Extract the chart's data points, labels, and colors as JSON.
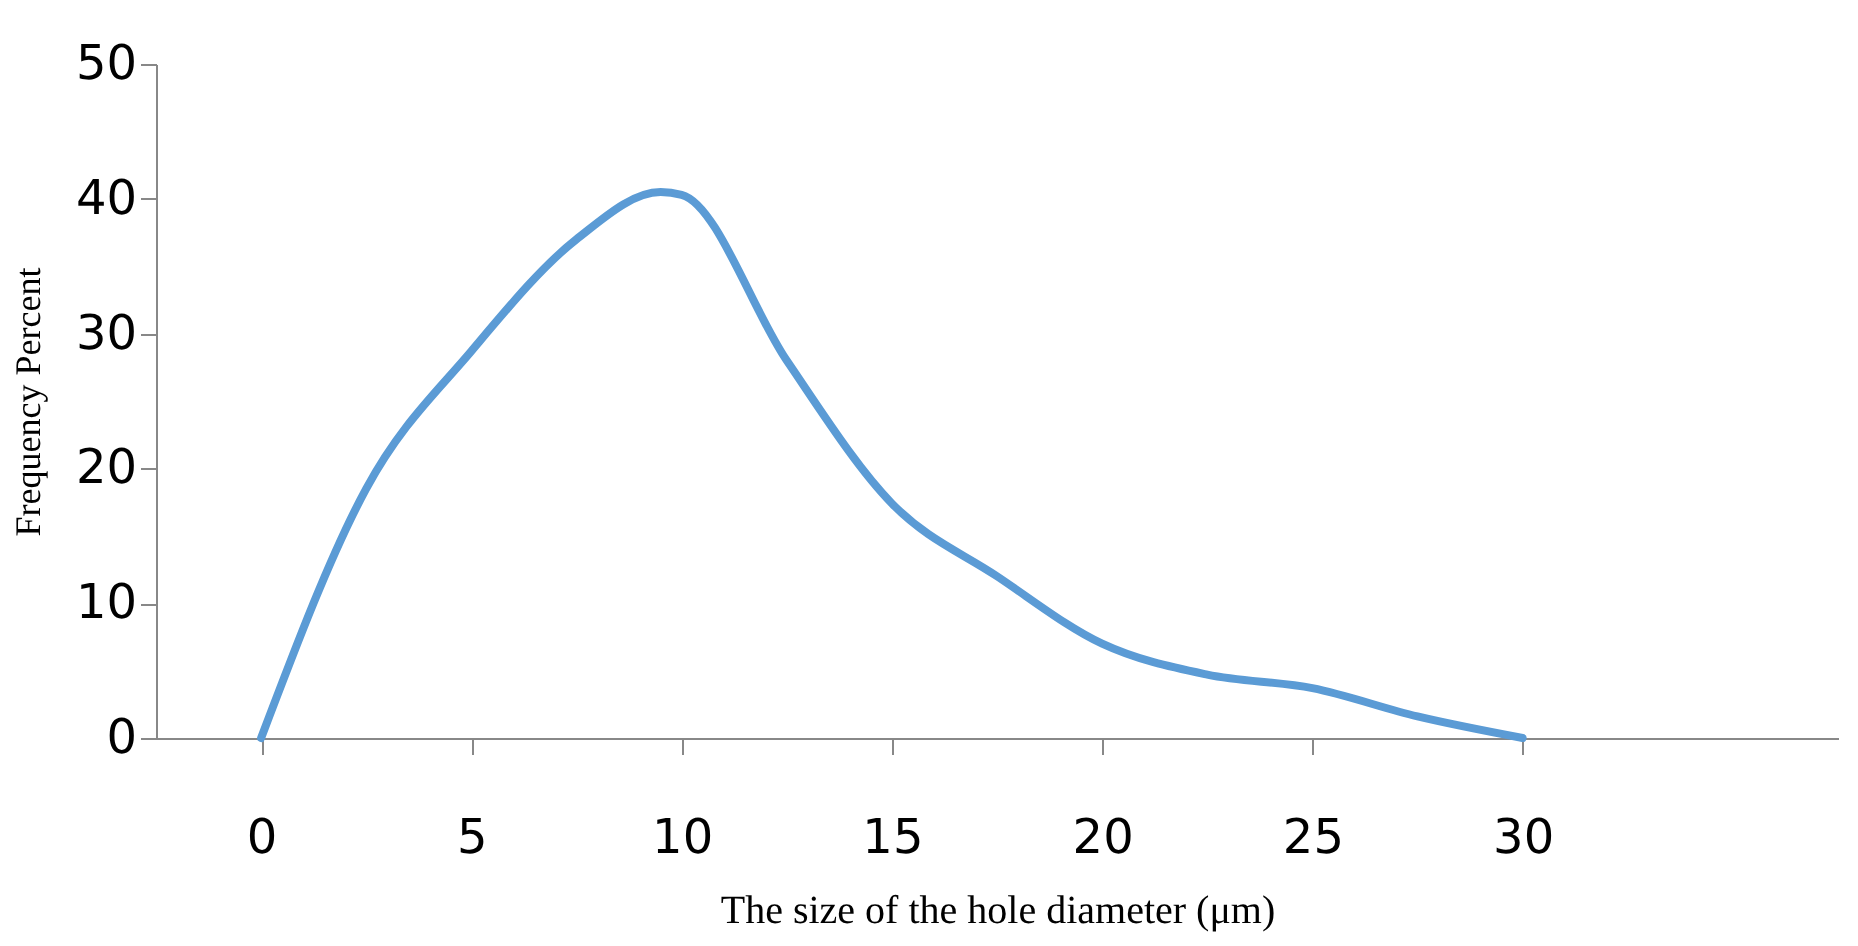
{
  "chart_data": {
    "type": "line",
    "xlabel": "The size of the hole diameter (μm)",
    "ylabel": "Frequency  Percent",
    "x": [
      0,
      2.5,
      5,
      7.5,
      9.5,
      10,
      12.5,
      15,
      17.5,
      20,
      22.5,
      25,
      27.5,
      30
    ],
    "series": [
      {
        "color": "#5b9bd5",
        "values": [
          0,
          18.5,
          28.7,
          37,
          40.5,
          40.3,
          28,
          17.4,
          12,
          7,
          4.7,
          3.7,
          1.6,
          0
        ]
      }
    ],
    "xlim": [
      -2.5,
      37.5
    ],
    "xticks": [
      0,
      5,
      10,
      15,
      20,
      25,
      30
    ],
    "ylim": [
      0,
      50
    ],
    "yticks": [
      0,
      10,
      20,
      30,
      40,
      50
    ],
    "grid": false,
    "marker": "none",
    "line_style": "solid"
  }
}
